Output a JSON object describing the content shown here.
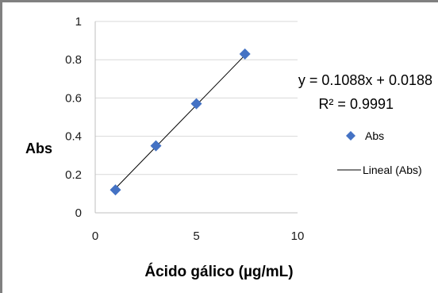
{
  "chart_data": {
    "type": "scatter",
    "xlabel": "Ácido gálico (µg/mL)",
    "ylabel": "Abs",
    "xlim": [
      0,
      10
    ],
    "ylim": [
      0,
      1
    ],
    "x_ticks": [
      "0",
      "5",
      "10"
    ],
    "y_ticks": [
      "0",
      "0.2",
      "0.4",
      "0.6",
      "0.8",
      "1"
    ],
    "grid": "horizontal",
    "legend_position": "right",
    "series": [
      {
        "name": "Abs",
        "kind": "points",
        "color": "#4472C4",
        "marker": "diamond",
        "points": [
          {
            "x": 1,
            "y": 0.12
          },
          {
            "x": 3,
            "y": 0.35
          },
          {
            "x": 5,
            "y": 0.57
          },
          {
            "x": 7.4,
            "y": 0.83
          }
        ]
      },
      {
        "name": "Lineal (Abs)",
        "kind": "trendline",
        "color": "#000000",
        "slope": 0.1088,
        "intercept": 0.0188,
        "x_range": [
          1,
          7.4
        ]
      }
    ],
    "annotations": {
      "equation": "y = 0.1088x + 0.0188",
      "r_squared": "R² = 0.9991"
    }
  }
}
